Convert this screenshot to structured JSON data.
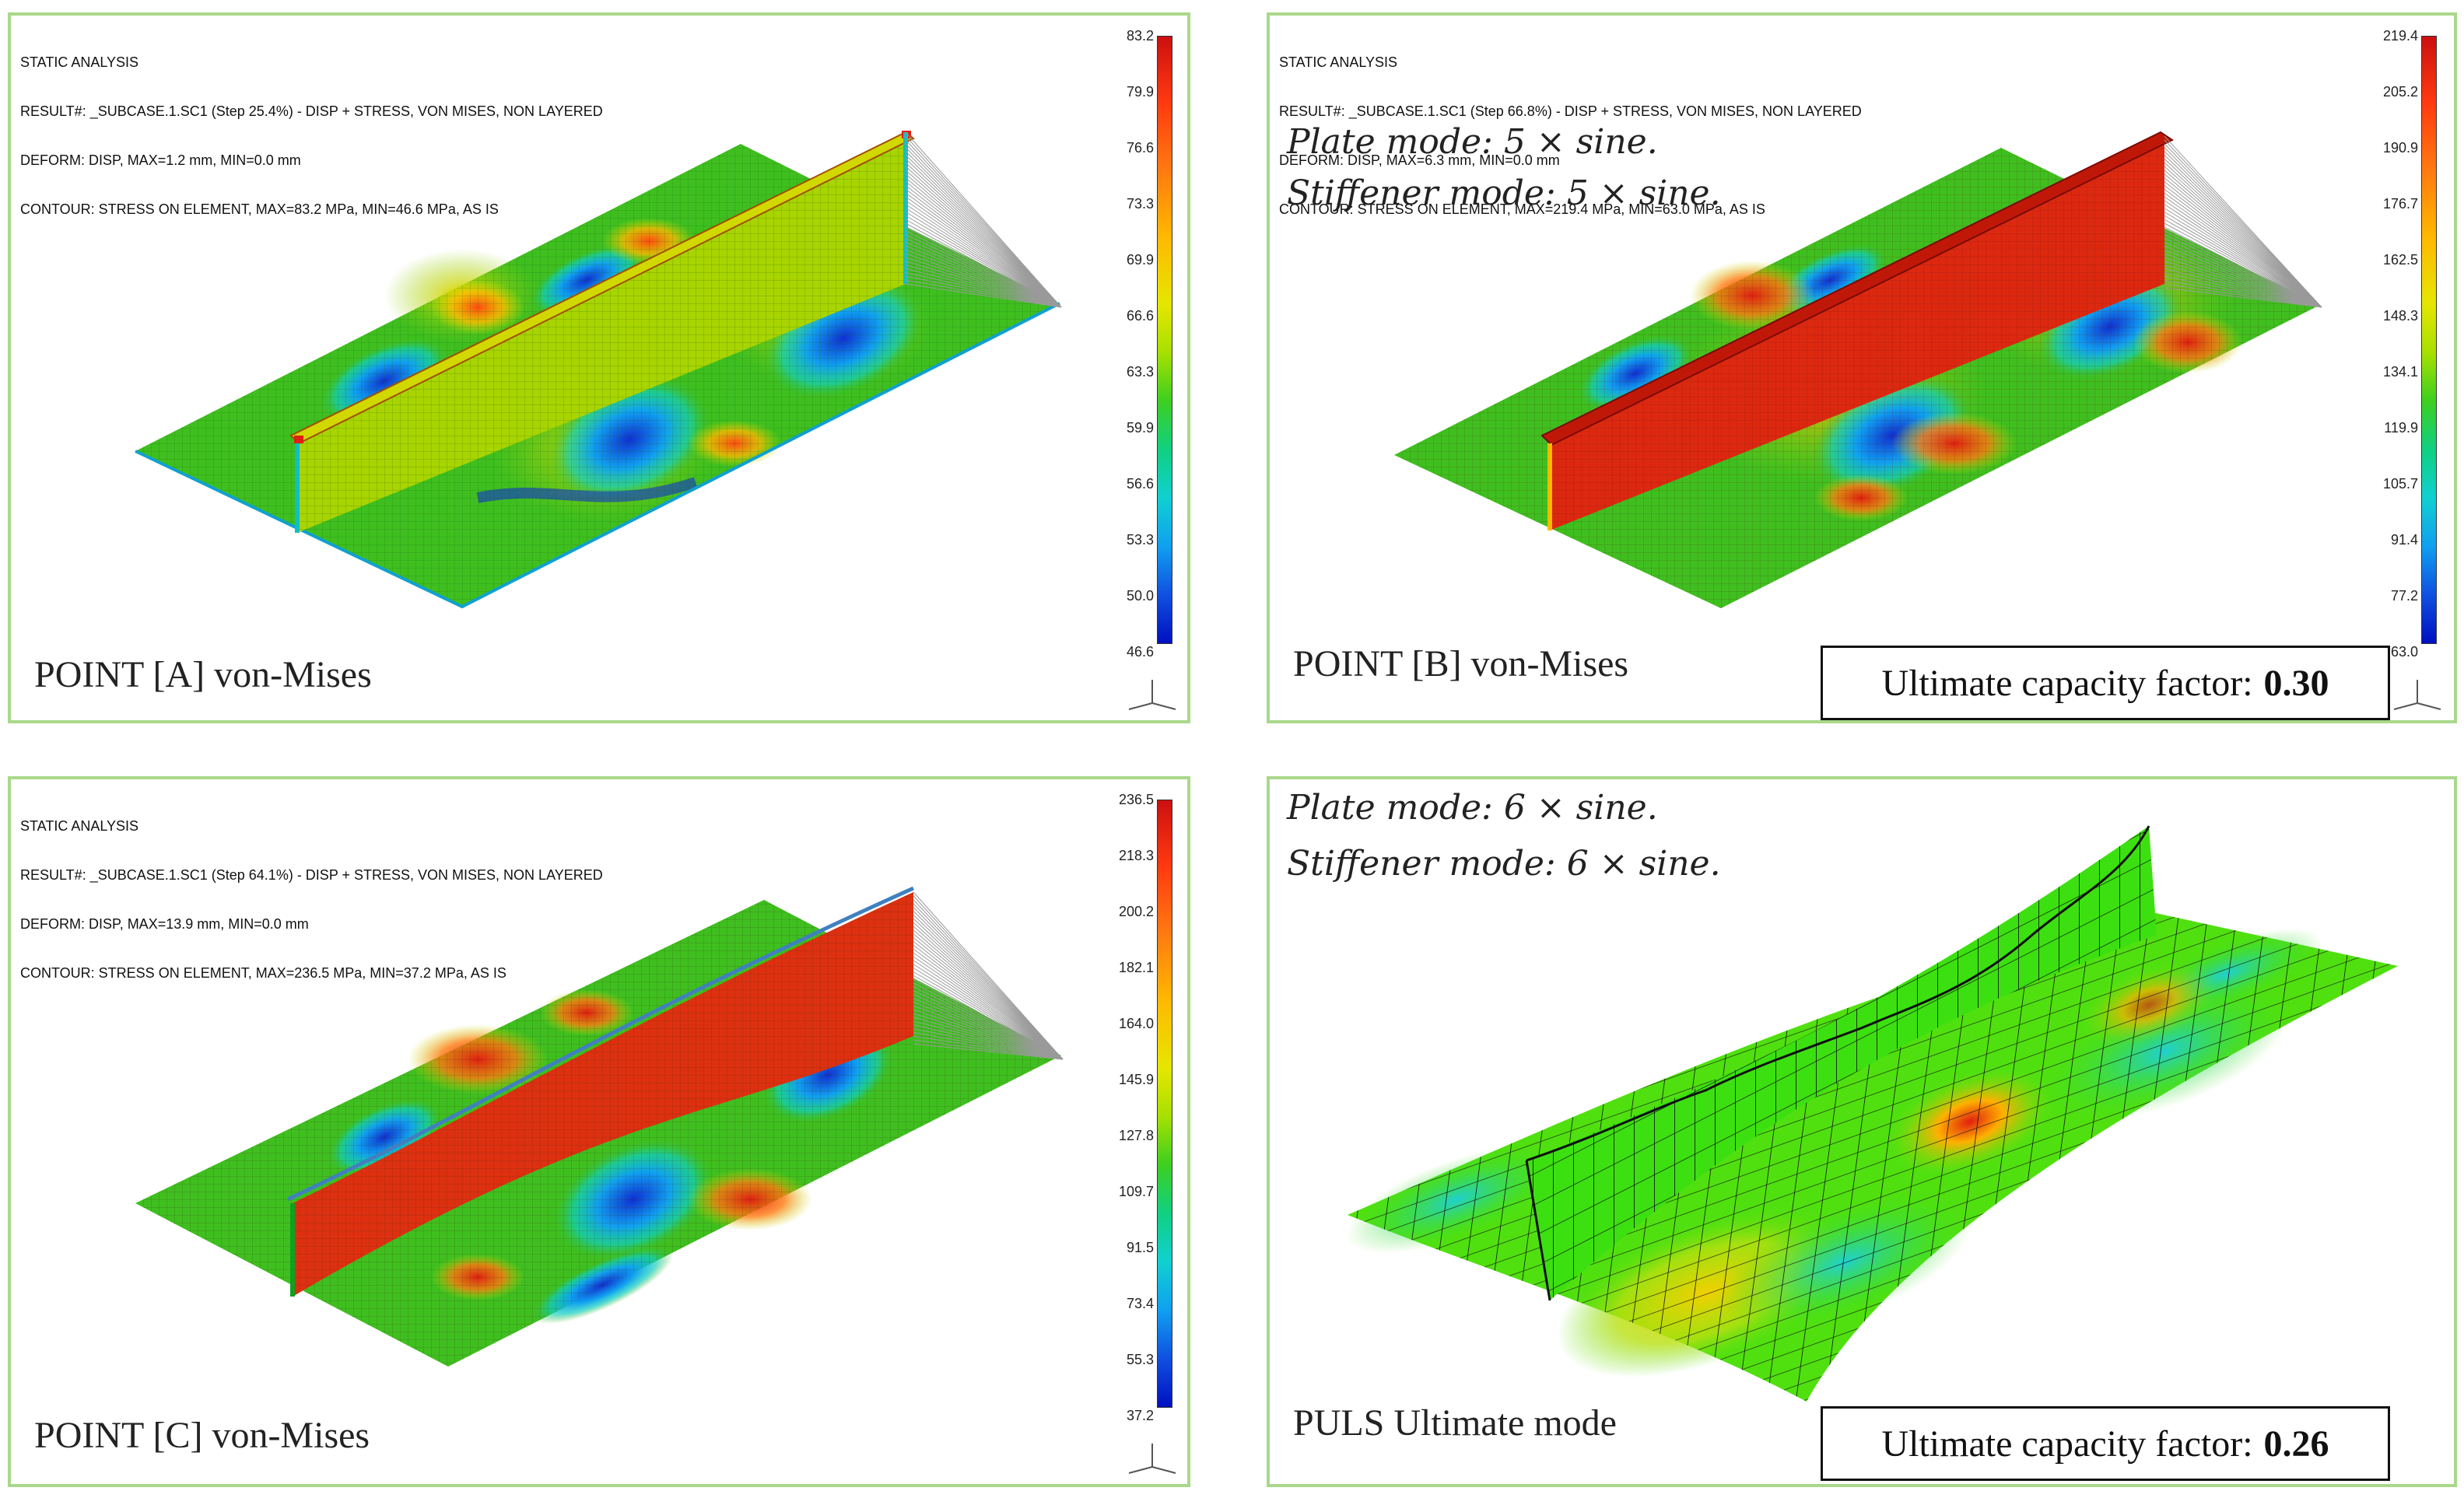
{
  "panels": {
    "a": {
      "header": [
        "STATIC ANALYSIS",
        "RESULT#: _SUBCASE.1.SC1 (Step 25.4%) - DISP + STRESS, VON MISES, NON LAYERED",
        "DEFORM: DISP, MAX=1.2 mm, MIN=0.0 mm",
        "CONTOUR: STRESS ON ELEMENT, MAX=83.2 MPa, MIN=46.6 MPa, AS IS"
      ],
      "label": "POINT [A] von-Mises",
      "colorbar": [
        "83.2",
        "79.9",
        "76.6",
        "73.3",
        "69.9",
        "66.6",
        "63.3",
        "59.9",
        "56.6",
        "53.3",
        "50.0",
        "46.6"
      ]
    },
    "b": {
      "header": [
        "STATIC ANALYSIS",
        "RESULT#: _SUBCASE.1.SC1 (Step 66.8%) - DISP + STRESS, VON MISES, NON LAYERED",
        "DEFORM: DISP, MAX=6.3 mm, MIN=0.0 mm",
        "CONTOUR: STRESS ON ELEMENT, MAX=219.4 MPa, MIN=63.0 MPa, AS IS"
      ],
      "label": "POINT [B] von-Mises",
      "mode_plate": "Plate mode: 5 × sine.",
      "mode_stiffener": "Stiffener mode: 5 × sine.",
      "ucf_label": "Ultimate capacity factor:",
      "ucf_value": "0.30",
      "colorbar": [
        "219.4",
        "205.2",
        "190.9",
        "176.7",
        "162.5",
        "148.3",
        "134.1",
        "119.9",
        "105.7",
        "91.4",
        "77.2",
        "63.0"
      ]
    },
    "c": {
      "header": [
        "STATIC ANALYSIS",
        "RESULT#: _SUBCASE.1.SC1 (Step 64.1%) - DISP + STRESS, VON MISES, NON LAYERED",
        "DEFORM: DISP, MAX=13.9 mm, MIN=0.0 mm",
        "CONTOUR: STRESS ON ELEMENT, MAX=236.5 MPa, MIN=37.2 MPa, AS IS"
      ],
      "label": "POINT [C] von-Mises",
      "colorbar": [
        "236.5",
        "218.3",
        "200.2",
        "182.1",
        "164.0",
        "145.9",
        "127.8",
        "109.7",
        "91.5",
        "73.4",
        "55.3",
        "37.2"
      ]
    },
    "d": {
      "label": "PULS Ultimate mode",
      "mode_plate": "Plate mode: 6 × sine.",
      "mode_stiffener": "Stiffener mode: 6 × sine.",
      "ucf_label": "Ultimate capacity factor:",
      "ucf_value": "0.26"
    }
  },
  "colors": {
    "border": "#a9d88a",
    "plate_base": "#3fbf1f",
    "stress_high": "#dd2010",
    "stress_low": "#1030d0",
    "mid": "#d8e000"
  }
}
